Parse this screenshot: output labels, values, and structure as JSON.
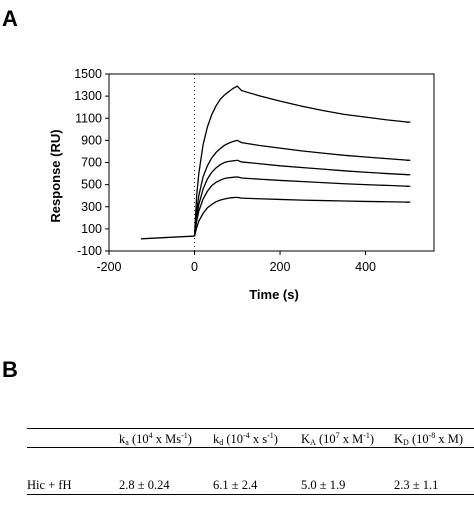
{
  "panels": {
    "a": "A",
    "b": "B"
  },
  "chart_data": {
    "type": "line",
    "xlabel": "Time  (s)",
    "ylabel": "Response  (RU)",
    "xlim": [
      -200,
      560
    ],
    "ylim": [
      -100,
      1500
    ],
    "xticks": [
      -200,
      0,
      200,
      400
    ],
    "yticks": [
      -100,
      100,
      300,
      500,
      700,
      900,
      1100,
      1300,
      1500
    ],
    "injection_time": 0,
    "baseline": {
      "x": [
        -125,
        0
      ],
      "y": [
        10,
        35
      ]
    },
    "series": [
      {
        "x": [
          0,
          5,
          10,
          20,
          30,
          40,
          50,
          60,
          70,
          80,
          90,
          100,
          110,
          150,
          200,
          250,
          300,
          350,
          400,
          450,
          500
        ],
        "y": [
          35,
          400,
          600,
          860,
          1020,
          1130,
          1210,
          1270,
          1310,
          1340,
          1370,
          1390,
          1350,
          1305,
          1255,
          1210,
          1170,
          1135,
          1110,
          1085,
          1065
        ]
      },
      {
        "x": [
          0,
          5,
          10,
          20,
          30,
          40,
          50,
          60,
          70,
          80,
          90,
          100,
          110,
          150,
          200,
          250,
          300,
          350,
          400,
          450,
          500
        ],
        "y": [
          35,
          260,
          400,
          570,
          670,
          740,
          790,
          825,
          855,
          875,
          890,
          900,
          880,
          855,
          830,
          805,
          785,
          765,
          750,
          735,
          720
        ]
      },
      {
        "x": [
          0,
          5,
          10,
          20,
          30,
          40,
          50,
          60,
          70,
          80,
          90,
          100,
          110,
          150,
          200,
          250,
          300,
          350,
          400,
          450,
          500
        ],
        "y": [
          35,
          210,
          320,
          460,
          550,
          610,
          650,
          680,
          700,
          710,
          715,
          720,
          705,
          690,
          670,
          655,
          640,
          625,
          612,
          600,
          590
        ]
      },
      {
        "x": [
          0,
          5,
          10,
          20,
          30,
          40,
          50,
          60,
          70,
          80,
          90,
          100,
          110,
          150,
          200,
          250,
          300,
          350,
          400,
          450,
          500
        ],
        "y": [
          35,
          170,
          260,
          370,
          440,
          490,
          520,
          540,
          555,
          562,
          566,
          570,
          560,
          550,
          538,
          528,
          518,
          508,
          500,
          493,
          485
        ]
      },
      {
        "x": [
          0,
          5,
          10,
          20,
          30,
          40,
          50,
          60,
          70,
          80,
          90,
          100,
          110,
          150,
          200,
          250,
          300,
          350,
          400,
          450,
          500
        ],
        "y": [
          35,
          110,
          170,
          240,
          290,
          320,
          345,
          360,
          370,
          378,
          383,
          385,
          378,
          372,
          366,
          360,
          356,
          352,
          348,
          345,
          342
        ]
      }
    ]
  },
  "table": {
    "headers": [
      {
        "main": "",
        "sub": "",
        "paren": "",
        "sup": "",
        "tail": ""
      },
      {
        "main": "k",
        "sub": "a",
        "paren": " (10",
        "sup": "4",
        "mid": " x Ms",
        "sup2": "-1",
        "tail": ")"
      },
      {
        "main": "k",
        "sub": "d",
        "paren": " (10",
        "sup": "-4",
        "mid": " x s",
        "sup2": "-1",
        "tail": ")"
      },
      {
        "main": "K",
        "sub": "A",
        "paren": " (10",
        "sup": "7",
        "mid": " x M",
        "sup2": "-1",
        "tail": ")"
      },
      {
        "main": "K",
        "sub": "D",
        "paren": " (10",
        "sup": "-8",
        "mid": " x M)",
        "sup2": "",
        "tail": ""
      }
    ],
    "row": [
      "Hic + fH",
      "2.8 ± 0.24",
      "6.1 ± 2.4",
      "5.0 ± 1.9",
      "2.3 ± 1.1"
    ]
  }
}
